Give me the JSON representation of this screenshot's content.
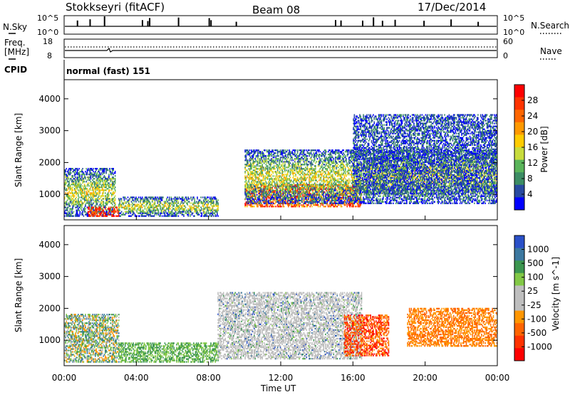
{
  "header": {
    "station": "Stokkseyri (fitACF)",
    "beam": "Beam 08",
    "date": "17/Dec/2014"
  },
  "noise_panel": {
    "left_label": "N.Sky",
    "left_ticks": [
      "10^5",
      "10^0"
    ],
    "right_label": "N.Search",
    "right_ticks": [
      "10^5",
      "10^0"
    ]
  },
  "freq_panel": {
    "left_label_1": "Freq.",
    "left_label_2": "[MHz]",
    "left_ticks": [
      "18",
      "8"
    ],
    "right_label": "Nave",
    "right_ticks": [
      "60",
      "0"
    ]
  },
  "cpid": {
    "label": "CPID",
    "value": "normal (fast) 151"
  },
  "chart_data": [
    {
      "type": "heatmap",
      "panel": "power",
      "ylabel": "Slant Range [km]",
      "y_ticks": [
        1000,
        2000,
        3000,
        4000
      ],
      "ylim": [
        200,
        4600
      ],
      "xlim": [
        0,
        24
      ],
      "colorbar": {
        "title": "Power [dB]",
        "tick_labels": [
          "28",
          "24",
          "20",
          "16",
          "12",
          "8",
          "4"
        ],
        "colors": [
          "#ff0000",
          "#ff3300",
          "#ff6600",
          "#ff9900",
          "#ffcc00",
          "#c8dc3c",
          "#5ab45a",
          "#3c8c64",
          "#284aa0",
          "#0000ff"
        ]
      },
      "echo_regions": [
        {
          "t": [
            0.0,
            2.8
          ],
          "r": [
            300,
            1800
          ],
          "level": "mixed-green"
        },
        {
          "t": [
            1.3,
            3.0
          ],
          "r": [
            300,
            600
          ],
          "level": "high-red"
        },
        {
          "t": [
            3.0,
            8.5
          ],
          "r": [
            300,
            900
          ],
          "level": "mixed-green"
        },
        {
          "t": [
            10.0,
            16.5
          ],
          "r": [
            600,
            1300
          ],
          "level": "high-red-orange"
        },
        {
          "t": [
            10.0,
            24.0
          ],
          "r": [
            700,
            2400
          ],
          "level": "mixed-green"
        },
        {
          "t": [
            16.0,
            24.0
          ],
          "r": [
            1000,
            3500
          ],
          "level": "low-blue"
        }
      ]
    },
    {
      "type": "heatmap",
      "panel": "velocity",
      "ylabel": "Slant Range [km]",
      "xlabel": "Time UT",
      "x_ticks": [
        "00:00",
        "04:00",
        "08:00",
        "12:00",
        "16:00",
        "20:00",
        "00:00"
      ],
      "y_ticks": [
        1000,
        2000,
        3000,
        4000
      ],
      "ylim": [
        200,
        4600
      ],
      "xlim": [
        0,
        24
      ],
      "colorbar": {
        "title": "Velocity [m s^-1]",
        "tick_labels": [
          "1000",
          "500",
          "100",
          "25",
          "-25",
          "-100",
          "-500",
          "-1000"
        ],
        "colors": [
          "#2a50c8",
          "#3c78a0",
          "#3c9650",
          "#82c846",
          "#bebebe",
          "#bebebe",
          "#ff9600",
          "#ff6400",
          "#ff3200",
          "#ff0000"
        ]
      },
      "echo_regions": [
        {
          "t": [
            0.0,
            3.0
          ],
          "r": [
            300,
            1800
          ],
          "level": "mixed-green-orange"
        },
        {
          "t": [
            3.0,
            8.5
          ],
          "r": [
            300,
            900
          ],
          "level": "green"
        },
        {
          "t": [
            8.5,
            16.5
          ],
          "r": [
            400,
            2500
          ],
          "level": "grey-ground-scatter"
        },
        {
          "t": [
            15.5,
            18.0
          ],
          "r": [
            500,
            1800
          ],
          "level": "orange-red"
        },
        {
          "t": [
            19.0,
            24.0
          ],
          "r": [
            800,
            2000
          ],
          "level": "orange"
        }
      ]
    }
  ]
}
